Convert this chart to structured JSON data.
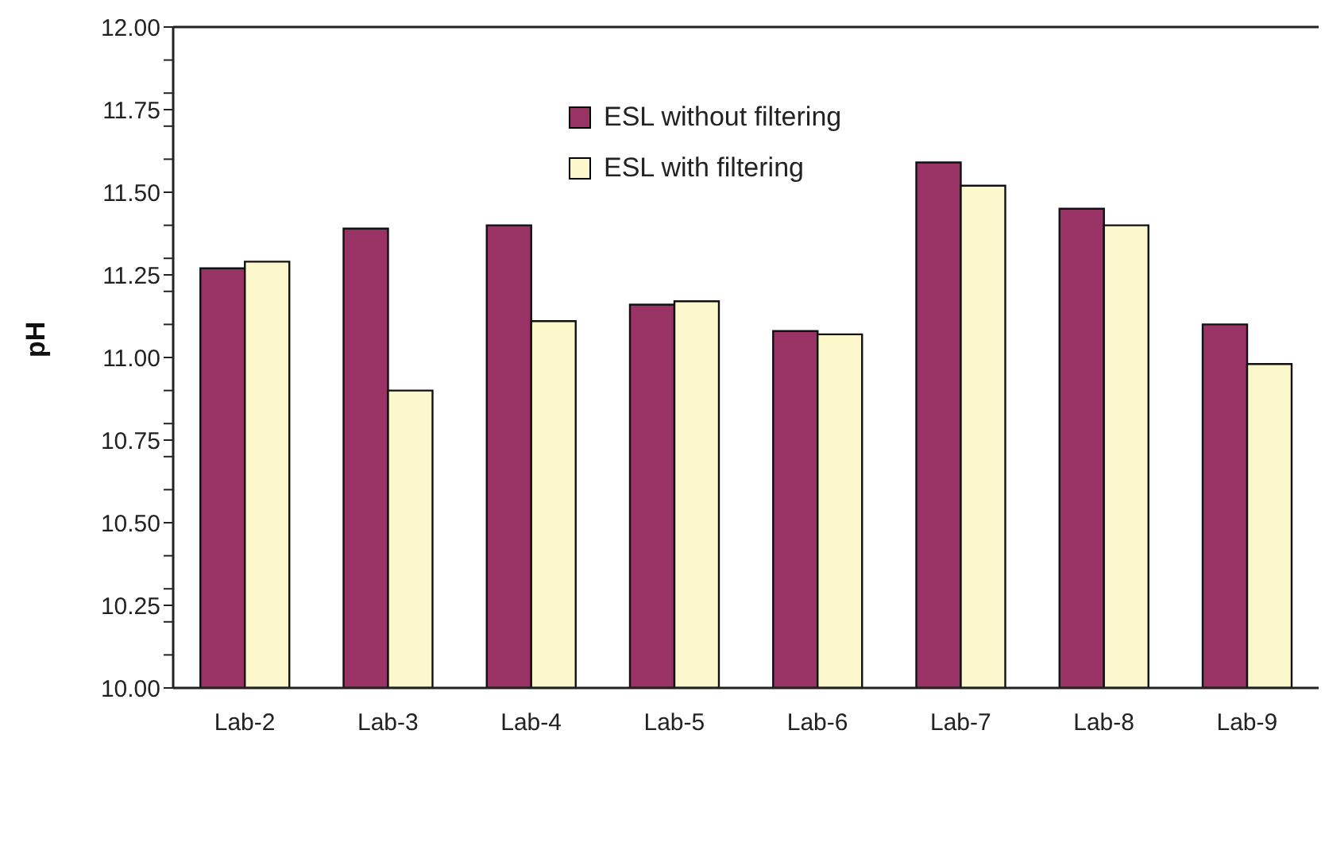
{
  "chart_data": {
    "type": "bar",
    "ylabel": "pH",
    "categories": [
      "Lab-2",
      "Lab-3",
      "Lab-4",
      "Lab-5",
      "Lab-6",
      "Lab-7",
      "Lab-8",
      "Lab-9"
    ],
    "series": [
      {
        "name": "ESL without filtering",
        "color": "#993366",
        "values": [
          11.27,
          11.39,
          11.4,
          11.16,
          11.08,
          11.59,
          11.45,
          11.1
        ]
      },
      {
        "name": "ESL with filtering",
        "color": "#fdf7cc",
        "values": [
          11.29,
          10.9,
          11.11,
          11.17,
          11.07,
          11.52,
          11.4,
          10.98
        ]
      }
    ],
    "ylim": [
      10,
      12
    ],
    "yticks": [
      {
        "value": 10,
        "label": "10.00"
      },
      {
        "value": 10.1,
        "label": null
      },
      {
        "value": 10.2,
        "label": null
      },
      {
        "value": 10.25,
        "label": "10.25"
      },
      {
        "value": 10.3,
        "label": null
      },
      {
        "value": 10.4,
        "label": null
      },
      {
        "value": 10.5,
        "label": "10.50"
      },
      {
        "value": 10.6,
        "label": null
      },
      {
        "value": 10.7,
        "label": null
      },
      {
        "value": 10.75,
        "label": "10.75"
      },
      {
        "value": 10.8,
        "label": null
      },
      {
        "value": 10.9,
        "label": null
      },
      {
        "value": 11,
        "label": "11.00"
      },
      {
        "value": 11.1,
        "label": null
      },
      {
        "value": 11.2,
        "label": null
      },
      {
        "value": 11.25,
        "label": "11.25"
      },
      {
        "value": 11.3,
        "label": null
      },
      {
        "value": 11.4,
        "label": null
      },
      {
        "value": 11.5,
        "label": "11.50"
      },
      {
        "value": 11.6,
        "label": null
      },
      {
        "value": 11.7,
        "label": null
      },
      {
        "value": 11.75,
        "label": "11.75"
      },
      {
        "value": 11.8,
        "label": null
      },
      {
        "value": 11.9,
        "label": null
      },
      {
        "value": 12,
        "label": "12.00"
      }
    ],
    "grid": false,
    "legend": "top"
  }
}
